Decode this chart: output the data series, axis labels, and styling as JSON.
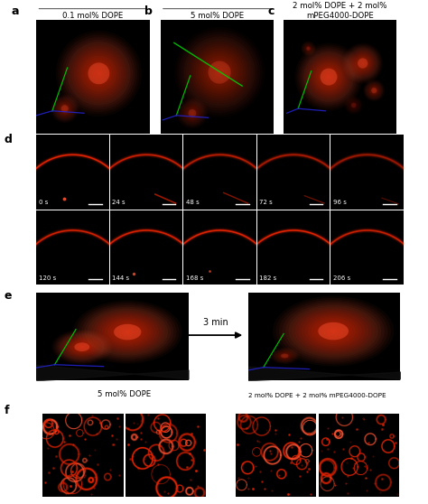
{
  "bg_color": "#ffffff",
  "panel_bg": "#000000",
  "red": "#dd2200",
  "red_bright": "#ff5533",
  "red_mid": "#cc1100",
  "green_line": "#00cc00",
  "blue_line": "#2222cc",
  "white": "#ffffff",
  "label_fontsize": 9,
  "title_fontsize": 6.2,
  "time_fontsize": 5.0,
  "arrow_fontsize": 7,
  "titles_row1_a": "0.1 mol% DOPE",
  "titles_row1_b": "5 mol% DOPE",
  "titles_row1_c": "2 mol% DOPE + 2 mol%\nmPEG4000-DOPE",
  "time_labels_row1": [
    "0 s",
    "24 s",
    "48 s",
    "72 s",
    "96 s"
  ],
  "time_labels_row2": [
    "120 s",
    "144 s",
    "168 s",
    "182 s",
    "206 s"
  ],
  "arrow_label": "3 min",
  "title_f_left": "5 mol% DOPE",
  "title_f_right": "2 mol% DOPE + 2 mol% mPEG4000-DOPE"
}
